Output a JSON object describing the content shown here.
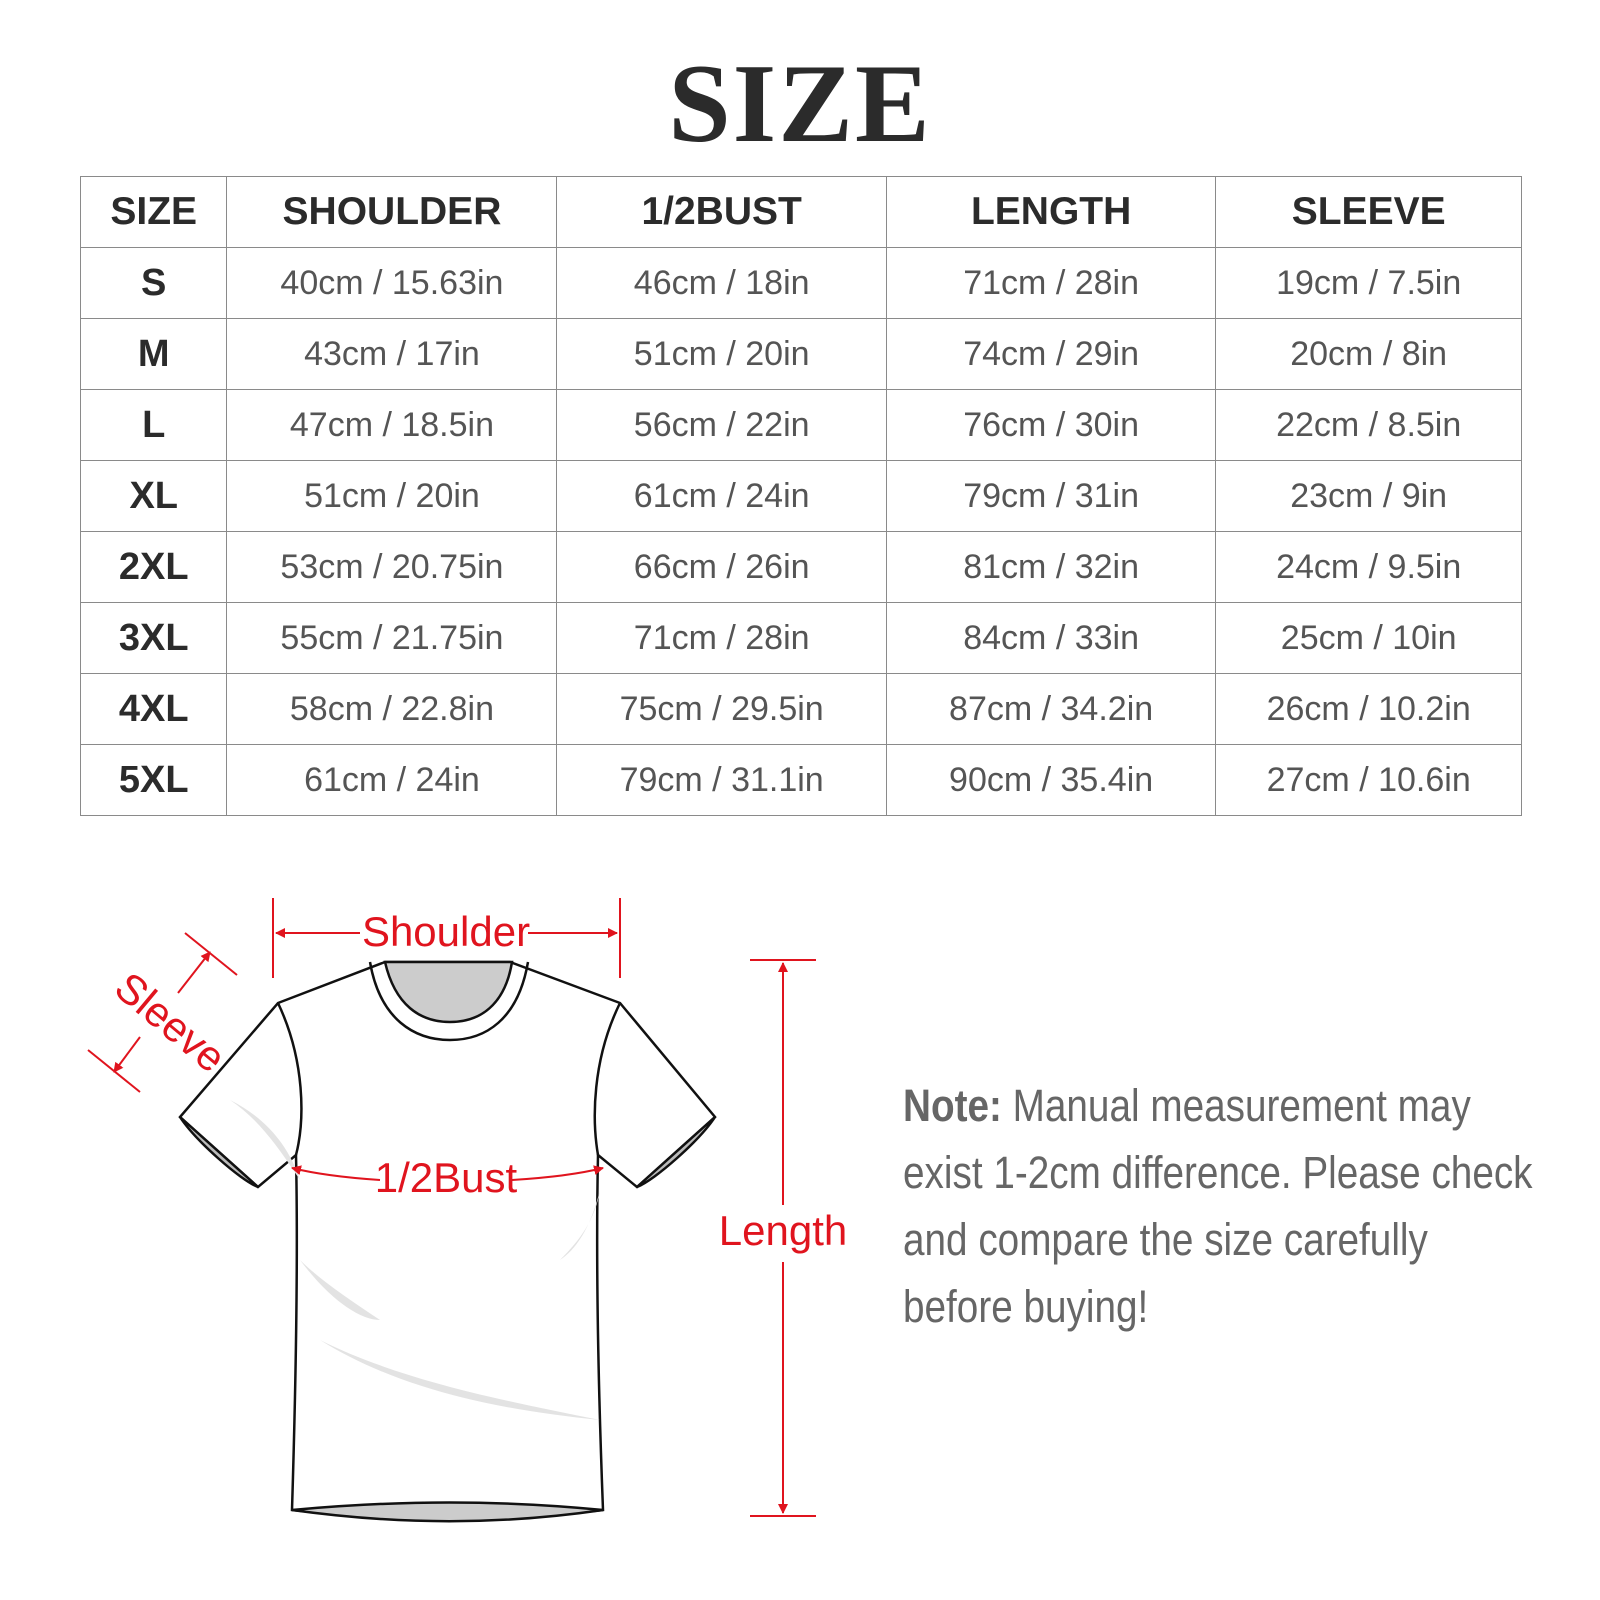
{
  "title": "SIZE",
  "table": {
    "headers": [
      "SIZE",
      "SHOULDER",
      "1/2BUST",
      "LENGTH",
      "SLEEVE"
    ],
    "rows": [
      [
        "S",
        "40cm / 15.63in",
        "46cm / 18in",
        "71cm / 28in",
        "19cm / 7.5in"
      ],
      [
        "M",
        "43cm / 17in",
        "51cm / 20in",
        "74cm / 29in",
        "20cm / 8in"
      ],
      [
        "L",
        "47cm / 18.5in",
        "56cm / 22in",
        "76cm / 30in",
        "22cm / 8.5in"
      ],
      [
        "XL",
        "51cm / 20in",
        "61cm / 24in",
        "79cm / 31in",
        "23cm / 9in"
      ],
      [
        "2XL",
        "53cm / 20.75in",
        "66cm / 26in",
        "81cm / 32in",
        "24cm / 9.5in"
      ],
      [
        "3XL",
        "55cm / 21.75in",
        "71cm / 28in",
        "84cm / 33in",
        "25cm / 10in"
      ],
      [
        "4XL",
        "58cm / 22.8in",
        "75cm / 29.5in",
        "87cm / 34.2in",
        "26cm / 10.2in"
      ],
      [
        "5XL",
        "61cm / 24in",
        "79cm / 31.1in",
        "90cm / 35.4in",
        "27cm / 10.6in"
      ]
    ]
  },
  "diagram": {
    "labels": {
      "shoulder": "Shoulder",
      "sleeve": "Sleeve",
      "bust": "1/2Bust",
      "length": "Length"
    },
    "accent_color": "#e0141e"
  },
  "note": {
    "label": "Note:",
    "text": "Manual measurement may exist 1-2cm difference. Please check and compare the size carefully before buying!"
  }
}
